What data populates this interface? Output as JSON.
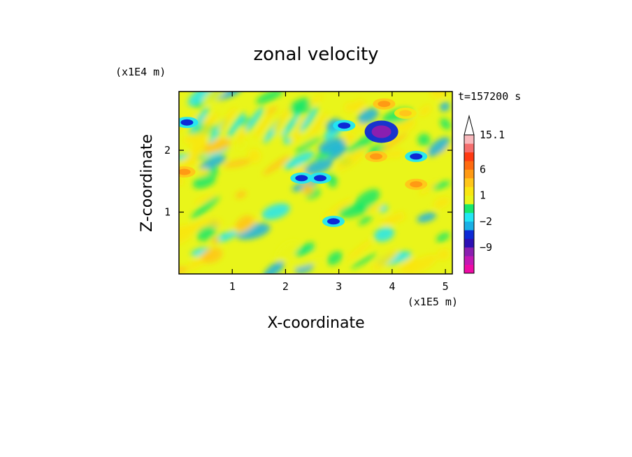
{
  "chart_data": {
    "type": "heatmap",
    "title": "zonal velocity",
    "xlabel": "X-coordinate",
    "ylabel": "Z-coordinate",
    "x_unit": "(x1E5 m)",
    "y_unit": "(x1E4 m)",
    "time_label": "t=157200 s",
    "xlim": [
      0,
      5.13
    ],
    "ylim": [
      0,
      2.95
    ],
    "x_ticks": [
      1,
      2,
      3,
      4,
      5
    ],
    "y_ticks": [
      1,
      2
    ],
    "colorbar": {
      "levels": [
        -13,
        -11,
        -9,
        -7,
        -5,
        -2,
        -1,
        0,
        1,
        2,
        4,
        6,
        8,
        10,
        12,
        15.1
      ],
      "labels": [
        "15.1",
        "6",
        "1",
        "−2",
        "−9"
      ],
      "label_values": [
        15.1,
        6,
        1,
        -2,
        -9
      ],
      "colors": [
        "#ee0aa6",
        "#c218b4",
        "#8a1fb0",
        "#2c10b4",
        "#0d2ad6",
        "#1ab0e6",
        "#22e6f4",
        "#18e86a",
        "#e9f51a",
        "#f9e612",
        "#ffc61a",
        "#ff9a14",
        "#ff6b10",
        "#ff3a12",
        "#f56e6e",
        "#f8b8bc"
      ],
      "extend": "max"
    },
    "features": [
      {
        "x": 3.8,
        "z": 2.3,
        "value": -9,
        "description": "strong negative core"
      },
      {
        "x": 3.1,
        "z": 2.4,
        "value": -5
      },
      {
        "x": 4.45,
        "z": 1.9,
        "value": -5
      },
      {
        "x": 2.65,
        "z": 1.55,
        "value": -5
      },
      {
        "x": 2.3,
        "z": 1.55,
        "value": -5
      },
      {
        "x": 0.15,
        "z": 2.45,
        "value": -5
      },
      {
        "x": 2.9,
        "z": 0.85,
        "value": -5
      },
      {
        "x": 3.7,
        "z": 1.9,
        "value": 6
      },
      {
        "x": 3.85,
        "z": 2.75,
        "value": 6
      },
      {
        "x": 4.45,
        "z": 1.45,
        "value": 6
      },
      {
        "x": 0.1,
        "z": 1.65,
        "value": 6
      },
      {
        "x": 4.25,
        "z": 2.6,
        "value": 4
      }
    ]
  }
}
